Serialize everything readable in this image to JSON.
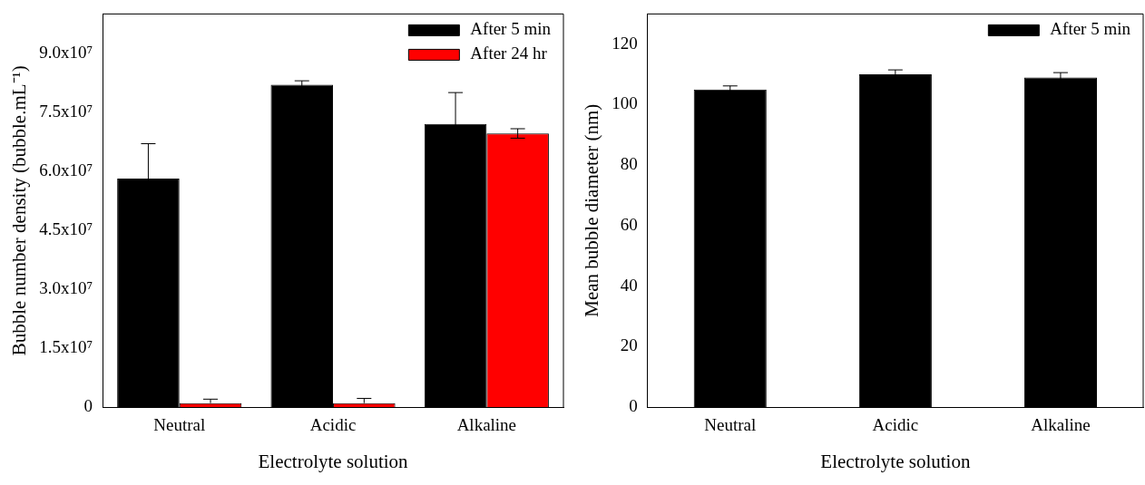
{
  "chart_data": [
    {
      "type": "bar",
      "xlabel": "Electrolyte solution",
      "ylabel": "Bubble number density (bubble.mL⁻¹)",
      "categories": [
        "Neutral",
        "Acidic",
        "Alkaline"
      ],
      "series": [
        {
          "name": "After 5 min",
          "color": "#000000",
          "values": [
            58100000,
            82000000,
            72000000
          ],
          "errors": [
            8900000,
            1000000,
            8000000
          ]
        },
        {
          "name": "After 24 hr",
          "color": "#ff0000",
          "values": [
            1000000,
            1000000,
            69600000
          ],
          "errors": [
            [
              1000000,
              2000000
            ],
            [
              1000000,
              2200000
            ],
            1200000
          ]
        }
      ],
      "ylim": [
        0,
        100000000
      ],
      "yticks": [
        0,
        {
          "value": 15000000,
          "label": "1.5x10⁷"
        },
        {
          "value": 30000000,
          "label": "3.0x10⁷"
        },
        {
          "value": 45000000,
          "label": "4.5x10⁷"
        },
        {
          "value": 60000000,
          "label": "6.0x10⁷"
        },
        {
          "value": 75000000,
          "label": "7.5x10⁷"
        },
        {
          "value": 90000000,
          "label": "9.0x10⁷"
        }
      ],
      "legend": "top right",
      "grid": false
    },
    {
      "type": "bar",
      "xlabel": "Electrolyte solution",
      "ylabel": "Mean bubble diameter (nm)",
      "categories": [
        "Neutral",
        "Acidic",
        "Alkaline"
      ],
      "series": [
        {
          "name": "After 5 min",
          "color": "#000000",
          "values": [
            105,
            110,
            109
          ],
          "errors": [
            1.2,
            1.5,
            1.6
          ]
        }
      ],
      "ylim": [
        0,
        130
      ],
      "yticks": [
        0,
        20,
        40,
        60,
        80,
        100,
        120
      ],
      "legend": "top right",
      "grid": false
    }
  ]
}
